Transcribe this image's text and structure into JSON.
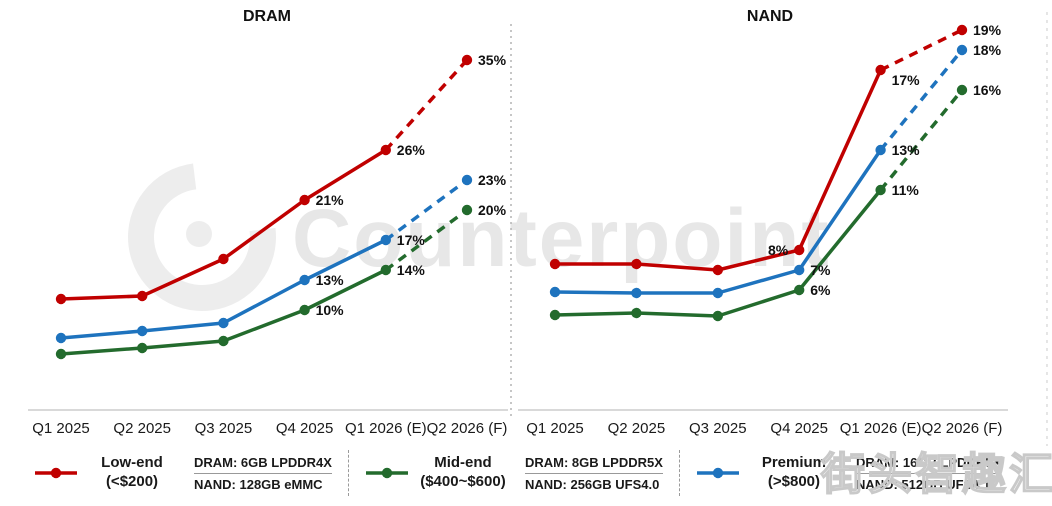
{
  "watermarks": {
    "brand": "Counterpoint",
    "cn": "街头智趣汇"
  },
  "chart_data": [
    {
      "type": "line",
      "title": "DRAM",
      "categories": [
        "Q1 2025",
        "Q2 2025",
        "Q3 2025",
        "Q4 2025",
        "Q1 2026 (E)",
        "Q2 2026 (F)"
      ],
      "ylim": [
        0,
        38
      ],
      "grid": false,
      "legend_position": "bottom",
      "forecast_from_index": 4,
      "series": [
        {
          "name": "Mid-end",
          "color": "#236b2d",
          "values": [
            5.6,
            6.2,
            6.9,
            10,
            14,
            20
          ],
          "data_labels": [
            "",
            "",
            "",
            "10%",
            "14%",
            "20%"
          ]
        },
        {
          "name": "Premium",
          "color": "#1e73be",
          "values": [
            7.2,
            7.9,
            8.7,
            13,
            17,
            23
          ],
          "data_labels": [
            "",
            "",
            "",
            "13%",
            "17%",
            "23%"
          ]
        },
        {
          "name": "Low-end",
          "color": "#c00000",
          "values": [
            11.1,
            11.4,
            15.1,
            21,
            26,
            35
          ],
          "data_labels": [
            "",
            "",
            "",
            "21%",
            "26%",
            "35%"
          ]
        }
      ]
    },
    {
      "type": "line",
      "title": "NAND",
      "categories": [
        "Q1 2025",
        "Q2 2025",
        "Q3 2025",
        "Q4 2025",
        "Q1 2026 (E)",
        "Q2 2026 (F)"
      ],
      "ylim": [
        0,
        19
      ],
      "grid": false,
      "legend_position": "bottom",
      "forecast_from_index": 4,
      "series": [
        {
          "name": "Mid-end",
          "color": "#236b2d",
          "values": [
            4.75,
            4.85,
            4.7,
            6,
            11,
            16
          ],
          "data_labels": [
            "",
            "",
            "",
            "6%",
            "11%",
            "16%"
          ]
        },
        {
          "name": "Premium",
          "color": "#1e73be",
          "values": [
            5.9,
            5.85,
            5.85,
            7,
            13,
            18
          ],
          "data_labels": [
            "",
            "",
            "",
            "7%",
            "13%",
            "18%"
          ]
        },
        {
          "name": "Low-end",
          "color": "#c00000",
          "values": [
            7.3,
            7.3,
            7.0,
            8,
            17,
            19
          ],
          "data_labels": [
            "",
            "",
            "",
            "8%",
            "17%",
            "19%"
          ],
          "label_sides": [
            "",
            "",
            "",
            "left",
            "below-right",
            "right"
          ]
        }
      ]
    }
  ],
  "legend": [
    {
      "name": "Low-end",
      "range": "(<$200)",
      "color": "#c00000",
      "dram": "DRAM: 6GB LPDDR4X",
      "nand": "NAND: 128GB eMMC"
    },
    {
      "name": "Mid-end",
      "range": "($400~$600)",
      "color": "#236b2d",
      "dram": "DRAM: 8GB LPDDR5X",
      "nand": "NAND: 256GB UFS4.0"
    },
    {
      "name": "Premium",
      "range": "(>$800)",
      "color": "#1e73be",
      "dram": "DRAM: 16GB LPDDR5X",
      "nand": "NAND: 512GB UFS4.1"
    }
  ]
}
